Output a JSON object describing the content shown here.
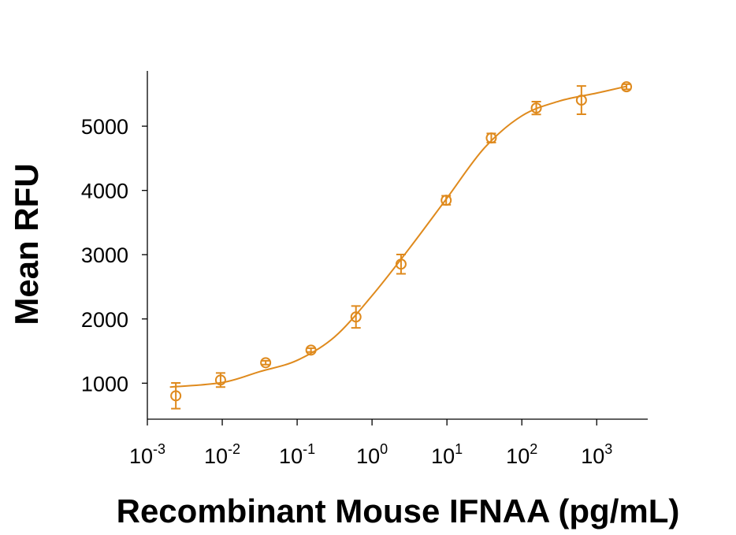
{
  "chart_data": {
    "type": "scatter",
    "xlabel": "Recombinant Mouse IFNAA (pg/mL)",
    "ylabel": "Mean RFU",
    "log_x": true,
    "xlim": [
      0.001,
      4800
    ],
    "ylim": [
      440,
      5860
    ],
    "xticks": [
      {
        "value": 0.001,
        "label": "10",
        "exponent": "-3"
      },
      {
        "value": 0.01,
        "label": "10",
        "exponent": "-2"
      },
      {
        "value": 0.1,
        "label": "10",
        "exponent": "-1"
      },
      {
        "value": 1,
        "label": "10",
        "exponent": "0"
      },
      {
        "value": 10,
        "label": "10",
        "exponent": "1"
      },
      {
        "value": 100,
        "label": "10",
        "exponent": "2"
      },
      {
        "value": 1000,
        "label": "10",
        "exponent": "3"
      }
    ],
    "yticks": [
      1000,
      2000,
      3000,
      4000,
      5000
    ],
    "series": [
      {
        "color": "#df8a1d",
        "x": [
          0.0024,
          0.0095,
          0.038,
          0.153,
          0.61,
          2.44,
          9.77,
          39.1,
          156,
          625,
          2500
        ],
        "values": [
          804,
          1049,
          1319,
          1515,
          2031,
          2853,
          3847,
          4816,
          5282,
          5405,
          5613
        ],
        "errors": [
          200,
          110,
          30,
          30,
          170,
          150,
          70,
          70,
          100,
          220,
          40
        ]
      }
    ],
    "fit": {
      "color": "#df8a1d",
      "x": [
        0.002,
        0.01,
        0.0316,
        0.1,
        0.316,
        1,
        3.16,
        10,
        31.6,
        100,
        316,
        1000,
        2500
      ],
      "values": [
        940,
        1010,
        1180,
        1356,
        1720,
        2362,
        3100,
        3880,
        4660,
        5160,
        5390,
        5515,
        5620
      ]
    }
  }
}
